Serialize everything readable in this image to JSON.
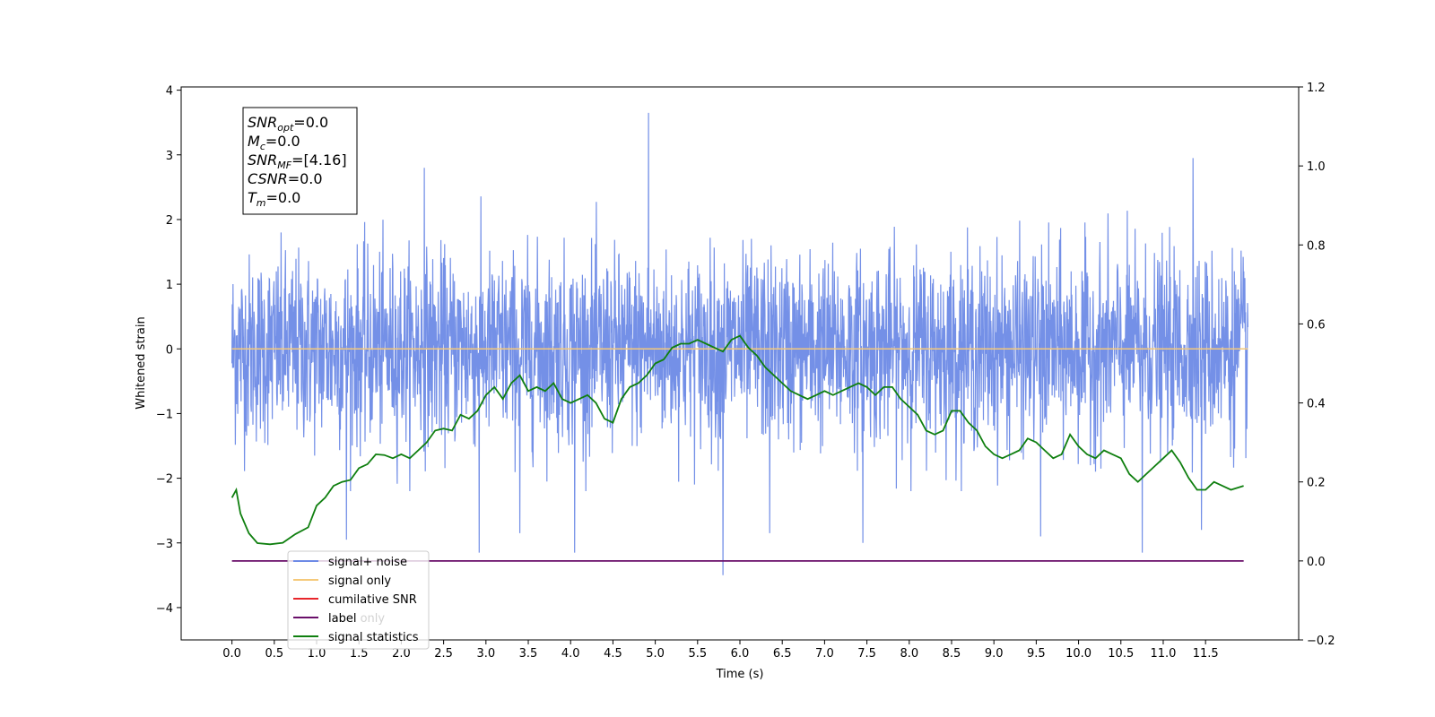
{
  "chart_data": {
    "type": "line",
    "xlabel": "Time (s)",
    "ylabel": "Whitened strain",
    "xlim": [
      -0.6,
      12.6
    ],
    "ylim": [
      -4.5,
      4.05
    ],
    "y2lim": [
      -0.2,
      1.2
    ],
    "x_ticks": [
      "0.0",
      "0.5",
      "1.0",
      "1.5",
      "2.0",
      "2.5",
      "3.0",
      "3.5",
      "4.0",
      "4.5",
      "5.0",
      "5.5",
      "6.0",
      "6.5",
      "7.0",
      "7.5",
      "8.0",
      "8.5",
      "9.0",
      "9.5",
      "10.0",
      "10.5",
      "11.0",
      "11.5"
    ],
    "y_ticks": [
      "4",
      "3",
      "2",
      "1",
      "0",
      "−1",
      "−2",
      "−3",
      "−4"
    ],
    "y2_ticks": [
      "1.2",
      "1.0",
      "0.8",
      "0.6",
      "0.4",
      "0.2",
      "0.0",
      "−0.2"
    ],
    "annotation": {
      "lines": [
        {
          "base": "SNR",
          "sub": "opt",
          "value": "=0.0"
        },
        {
          "base": "M",
          "sub": "c",
          "value": "=0.0"
        },
        {
          "base": "SNR",
          "sub": "MF",
          "value": "=[4.16]"
        },
        {
          "base": "CSNR",
          "sub": "",
          "value": "=0.0"
        },
        {
          "base": "T",
          "sub": "m",
          "value": "=0.0"
        }
      ]
    },
    "legend": {
      "placement": "lower-left",
      "entries": [
        {
          "label": "signal+ noise",
          "color": "#6d8ae6"
        },
        {
          "label": "signal only",
          "color": "#f5c97a"
        },
        {
          "label": "cumilative SNR",
          "color": "#e8262b"
        },
        {
          "label": "label",
          "color": "#6a0f6a"
        },
        {
          "label": "signal statistics",
          "color": "#0f7f0f"
        }
      ],
      "hidden_entry_text": "label only"
    },
    "series": [
      {
        "name": "signal+ noise",
        "axis": "left",
        "color": "#6d8ae6",
        "description": "white noise band between about -2.0 and +2.4 with spikes",
        "x_range": [
          0.0,
          12.0
        ],
        "spikes": [
          {
            "x": 4.92,
            "y": 3.65
          },
          {
            "x": 11.35,
            "y": 2.95
          },
          {
            "x": 2.27,
            "y": 2.8
          },
          {
            "x": 5.8,
            "y": -3.5
          },
          {
            "x": 2.92,
            "y": -3.15
          },
          {
            "x": 4.05,
            "y": -3.15
          },
          {
            "x": 10.75,
            "y": -3.15
          },
          {
            "x": 7.45,
            "y": -3.0
          },
          {
            "x": 9.55,
            "y": -2.9
          },
          {
            "x": 3.4,
            "y": -2.85
          },
          {
            "x": 1.35,
            "y": -2.95
          },
          {
            "x": 11.45,
            "y": -2.8
          },
          {
            "x": 6.35,
            "y": -2.85
          }
        ]
      },
      {
        "name": "signal only",
        "axis": "left",
        "color": "#f5c97a",
        "x": [
          0.0,
          12.0
        ],
        "y": [
          0.0,
          0.0
        ]
      },
      {
        "name": "label",
        "axis": "right",
        "color": "#6a0f6a",
        "x": [
          0.0,
          11.95
        ],
        "y": [
          0.0,
          0.0
        ]
      },
      {
        "name": "signal statistics",
        "axis": "right",
        "color": "#0f7f0f",
        "x": [
          0.0,
          0.05,
          0.1,
          0.2,
          0.3,
          0.45,
          0.6,
          0.75,
          0.9,
          1.0,
          1.1,
          1.2,
          1.3,
          1.4,
          1.5,
          1.6,
          1.7,
          1.8,
          1.9,
          2.0,
          2.1,
          2.2,
          2.3,
          2.4,
          2.5,
          2.6,
          2.7,
          2.8,
          2.9,
          3.0,
          3.1,
          3.2,
          3.3,
          3.4,
          3.5,
          3.6,
          3.7,
          3.8,
          3.9,
          4.0,
          4.1,
          4.2,
          4.3,
          4.4,
          4.5,
          4.6,
          4.7,
          4.8,
          4.9,
          5.0,
          5.1,
          5.2,
          5.3,
          5.4,
          5.5,
          5.6,
          5.7,
          5.8,
          5.9,
          6.0,
          6.1,
          6.2,
          6.3,
          6.4,
          6.5,
          6.6,
          6.7,
          6.8,
          6.9,
          7.0,
          7.1,
          7.2,
          7.3,
          7.4,
          7.5,
          7.6,
          7.7,
          7.8,
          7.9,
          8.0,
          8.1,
          8.2,
          8.3,
          8.4,
          8.5,
          8.6,
          8.7,
          8.8,
          8.9,
          9.0,
          9.1,
          9.2,
          9.3,
          9.4,
          9.5,
          9.6,
          9.7,
          9.8,
          9.9,
          10.0,
          10.1,
          10.2,
          10.3,
          10.4,
          10.5,
          10.6,
          10.7,
          10.8,
          10.9,
          11.0,
          11.1,
          11.2,
          11.3,
          11.4,
          11.5,
          11.6,
          11.7,
          11.8,
          11.95
        ],
        "y": [
          0.16,
          0.18,
          0.12,
          0.07,
          0.045,
          0.042,
          0.046,
          0.068,
          0.085,
          0.14,
          0.16,
          0.19,
          0.2,
          0.205,
          0.235,
          0.245,
          0.27,
          0.268,
          0.26,
          0.27,
          0.26,
          0.28,
          0.3,
          0.33,
          0.335,
          0.33,
          0.37,
          0.36,
          0.38,
          0.42,
          0.44,
          0.41,
          0.45,
          0.47,
          0.43,
          0.44,
          0.43,
          0.45,
          0.41,
          0.4,
          0.41,
          0.42,
          0.4,
          0.36,
          0.35,
          0.41,
          0.44,
          0.45,
          0.47,
          0.5,
          0.51,
          0.54,
          0.55,
          0.55,
          0.56,
          0.55,
          0.54,
          0.53,
          0.56,
          0.57,
          0.54,
          0.52,
          0.49,
          0.47,
          0.45,
          0.43,
          0.42,
          0.41,
          0.42,
          0.43,
          0.42,
          0.43,
          0.44,
          0.45,
          0.44,
          0.42,
          0.44,
          0.44,
          0.41,
          0.39,
          0.37,
          0.33,
          0.32,
          0.33,
          0.38,
          0.38,
          0.35,
          0.33,
          0.29,
          0.27,
          0.26,
          0.27,
          0.28,
          0.31,
          0.3,
          0.28,
          0.26,
          0.27,
          0.32,
          0.29,
          0.27,
          0.26,
          0.28,
          0.27,
          0.26,
          0.22,
          0.2,
          0.22,
          0.24,
          0.26,
          0.28,
          0.25,
          0.21,
          0.18,
          0.18,
          0.2,
          0.19,
          0.18,
          0.19
        ]
      }
    ]
  }
}
